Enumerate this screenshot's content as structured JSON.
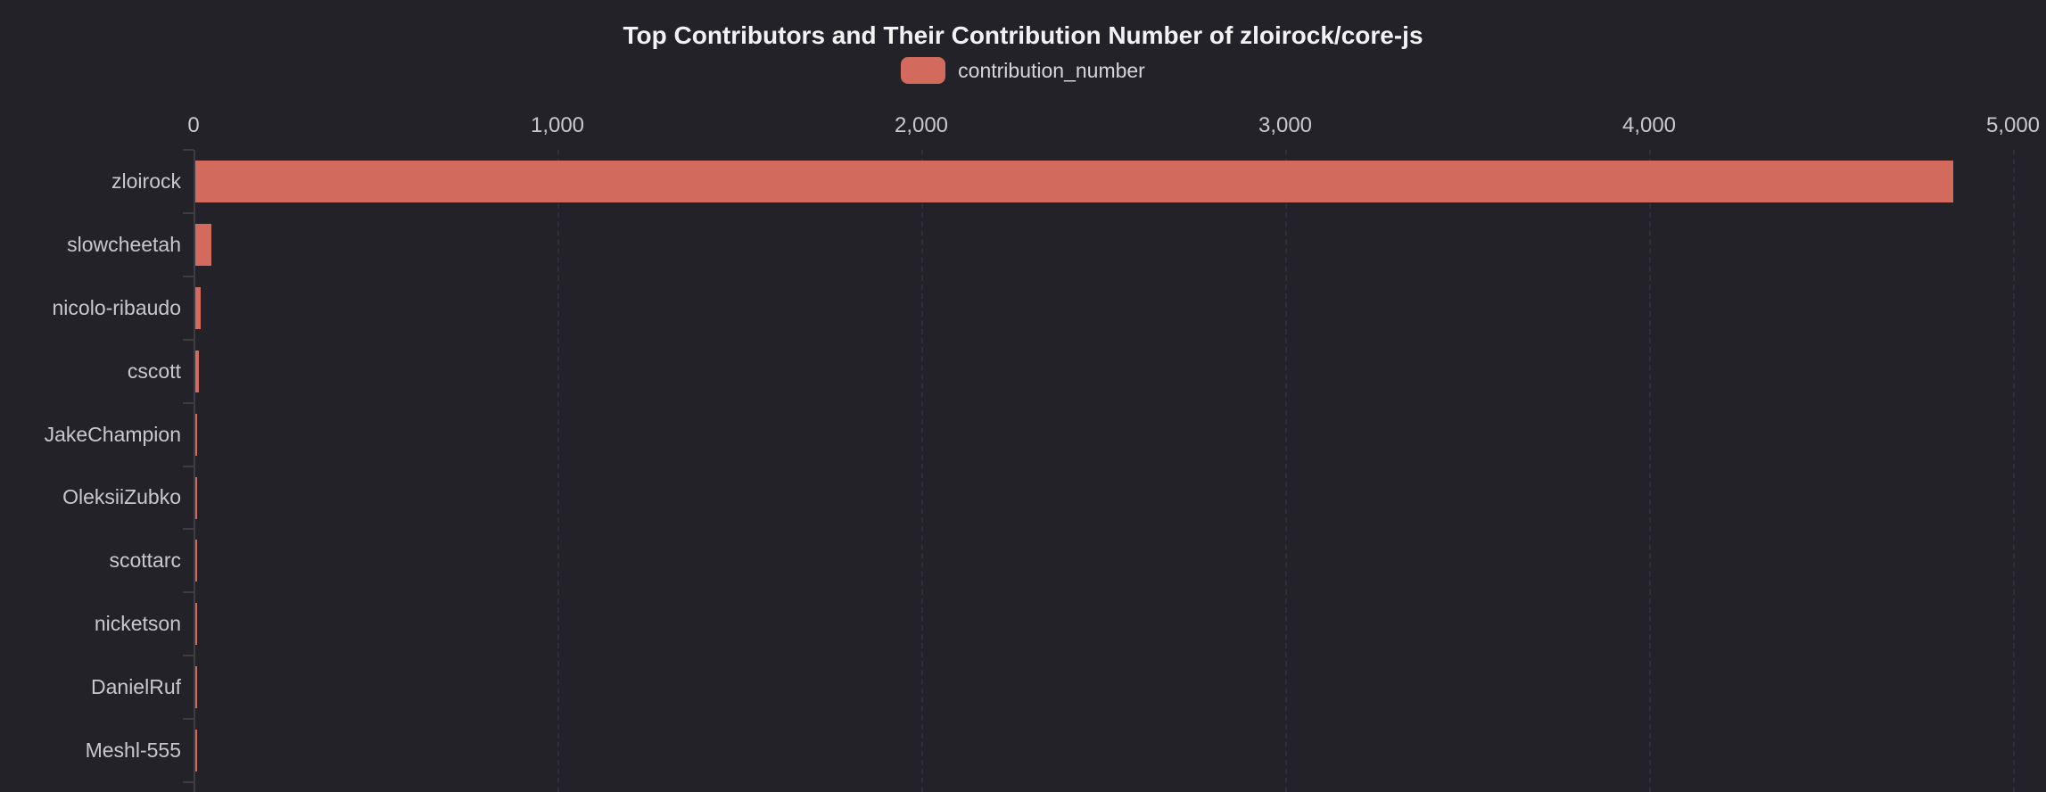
{
  "chart_data": {
    "type": "bar",
    "orientation": "horizontal",
    "title": "Top Contributors and Their Contribution Number of zloirock/core-js",
    "legend": {
      "position": "top",
      "items": [
        {
          "label": "contribution_number",
          "color": "#d26a5e"
        }
      ]
    },
    "categories": [
      "zloirock",
      "slowcheetah",
      "nicolo-ribaudo",
      "cscott",
      "JakeChampion",
      "OleksiiZubko",
      "scottarc",
      "nicketson",
      "DanielRuf",
      "Meshl-555"
    ],
    "series": [
      {
        "name": "contribution_number",
        "color": "#d26a5e",
        "values": [
          4830,
          45,
          15,
          10,
          5,
          5,
          5,
          4,
          4,
          4
        ]
      }
    ],
    "xlabel": "",
    "ylabel": "",
    "xlim": [
      0,
      5000
    ],
    "x_axis_position": "top",
    "x_tick_labels": [
      "0",
      "1,000",
      "2,000",
      "3,000",
      "4,000",
      "5,000"
    ],
    "x_tick_values": [
      0,
      1000,
      2000,
      3000,
      4000,
      5000
    ],
    "grid": {
      "vertical": true,
      "style": "dashed"
    },
    "colors": {
      "background": "#222228",
      "bar": "#d26a5e",
      "axis_line": "#3c3c42",
      "grid_line": "#2e2e36",
      "tick_label": "#c9c9cd",
      "title": "#f2f2f4",
      "legend_label": "#d6d6da"
    }
  }
}
